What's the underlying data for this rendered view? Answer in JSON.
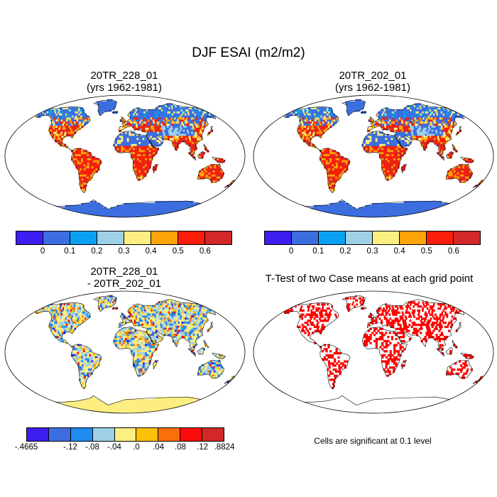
{
  "title": "DJF ESAI (m2/m2)",
  "panels": {
    "top_left": {
      "title": "20TR_228_01\n(yrs 1962-1981)"
    },
    "top_right": {
      "title": "20TR_202_01\n(yrs 1962-1981)"
    },
    "bottom_left": {
      "title": "20TR_228_01\n- 20TR_202_01"
    },
    "bottom_right": {
      "title": "T-Test of two Case means at each grid point"
    }
  },
  "colorbar_main": {
    "colors": [
      "#3c1ef0",
      "#3c6ee0",
      "#0aa0f0",
      "#9ed0e8",
      "#fcee80",
      "#fca40a",
      "#fa1e0a",
      "#d22828"
    ],
    "labels": [
      "0",
      "0.1",
      "0.2",
      "0.3",
      "0.4",
      "0.5",
      "0.6"
    ]
  },
  "colorbar_diff": {
    "colors": [
      "#3c1ef0",
      "#3c6ee0",
      "#1e8cf0",
      "#9ed0e8",
      "#fcee80",
      "#fcc00a",
      "#fa6e0a",
      "#fa0a0a",
      "#d22828"
    ],
    "labels": [
      "-.4665",
      "-.12",
      "-.08",
      "-.04",
      ".0",
      ".04",
      ".08",
      ".12",
      ".8824"
    ]
  },
  "significance_note": "Cells are significant at 0.1 level",
  "map_colors": {
    "ocean": "#ffffff",
    "ttest": "#ff0000"
  }
}
